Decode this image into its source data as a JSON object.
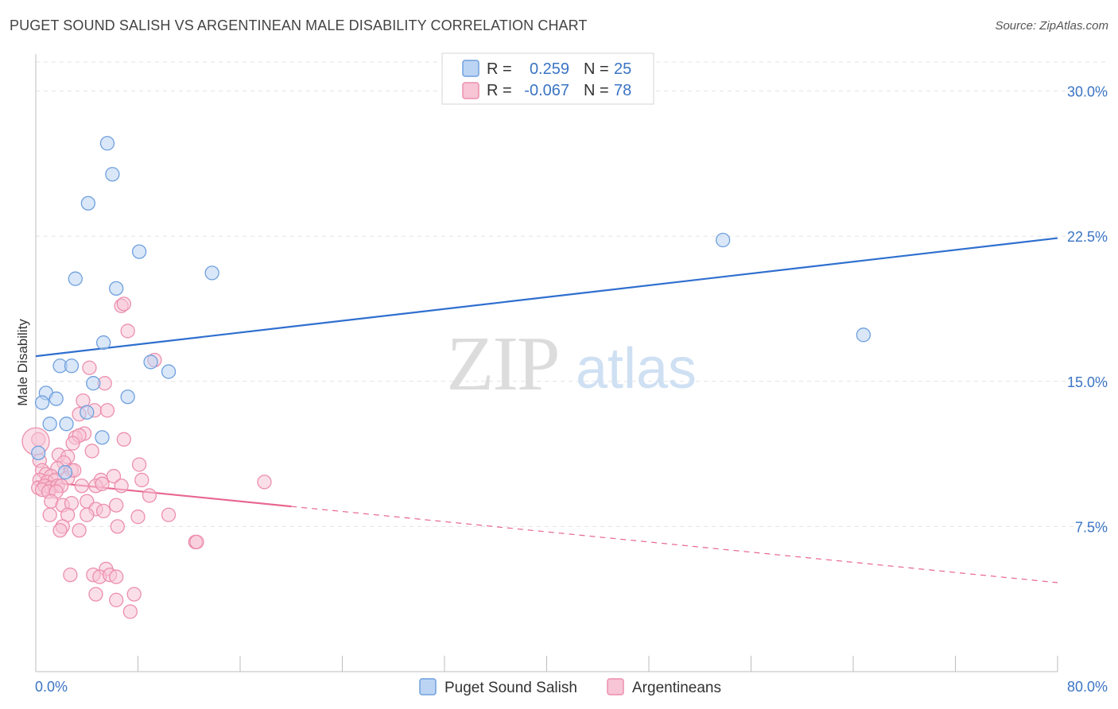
{
  "title": "PUGET SOUND SALISH VS ARGENTINEAN MALE DISABILITY CORRELATION CHART",
  "source": "Source: ZipAtlas.com",
  "watermark": {
    "zip": "ZIP",
    "atlas": "atlas"
  },
  "chart_data": {
    "type": "scatter",
    "title": "PUGET SOUND SALISH VS ARGENTINEAN MALE DISABILITY CORRELATION CHART",
    "xlabel": "",
    "ylabel": "Male Disability",
    "xlim": [
      0,
      80
    ],
    "ylim": [
      0,
      31.5
    ],
    "x_tick_labels": [
      {
        "value": 0,
        "label": "0.0%"
      },
      {
        "value": 80,
        "label": "80.0%"
      }
    ],
    "y_tick_labels": [
      {
        "value": 7.5,
        "label": "7.5%"
      },
      {
        "value": 15.0,
        "label": "15.0%"
      },
      {
        "value": 22.5,
        "label": "22.5%"
      },
      {
        "value": 30.0,
        "label": "30.0%"
      }
    ],
    "grid": true,
    "legend": {
      "placement": "top-center",
      "rows": [
        {
          "r_label": "R =",
          "r_value": "0.259",
          "n_label": "N =",
          "n_value": "25"
        },
        {
          "r_label": "R =",
          "r_value": "-0.067",
          "n_label": "N =",
          "n_value": "78"
        }
      ]
    },
    "series": [
      {
        "name": "Puget Sound Salish",
        "color": "#6fa0de",
        "fill": "#bcd4f3",
        "trend": {
          "x0": 0,
          "y0": 16.3,
          "x1": 80,
          "y1": 22.4,
          "solid_until": 80,
          "color": "#2f6fcf"
        },
        "points": [
          [
            5.6,
            27.3
          ],
          [
            6.0,
            25.7
          ],
          [
            4.1,
            24.2
          ],
          [
            8.1,
            21.7
          ],
          [
            3.1,
            20.3
          ],
          [
            13.8,
            20.6
          ],
          [
            6.3,
            19.8
          ],
          [
            53.8,
            22.3
          ],
          [
            64.8,
            17.4
          ],
          [
            5.3,
            17.0
          ],
          [
            1.9,
            15.8
          ],
          [
            2.8,
            15.8
          ],
          [
            9.0,
            16.0
          ],
          [
            10.4,
            15.5
          ],
          [
            4.5,
            14.9
          ],
          [
            0.8,
            14.4
          ],
          [
            1.6,
            14.1
          ],
          [
            7.2,
            14.2
          ],
          [
            0.5,
            13.9
          ],
          [
            4.0,
            13.4
          ],
          [
            1.1,
            12.8
          ],
          [
            2.4,
            12.8
          ],
          [
            5.2,
            12.1
          ],
          [
            0.2,
            11.3
          ],
          [
            2.3,
            10.3
          ]
        ]
      },
      {
        "name": "Argentineans",
        "color": "#ec8fad",
        "fill": "#f7c5d5",
        "trend": {
          "x0": 0,
          "y0": 9.85,
          "x1": 80,
          "y1": 4.6,
          "solid_until": 20,
          "color": "#e8668f"
        },
        "points": [
          [
            6.7,
            18.9
          ],
          [
            6.9,
            19.0
          ],
          [
            7.2,
            17.6
          ],
          [
            9.3,
            16.1
          ],
          [
            4.2,
            15.7
          ],
          [
            5.4,
            14.9
          ],
          [
            3.7,
            14.0
          ],
          [
            3.4,
            13.3
          ],
          [
            4.6,
            13.5
          ],
          [
            5.6,
            13.5
          ],
          [
            3.8,
            12.3
          ],
          [
            3.1,
            12.1
          ],
          [
            3.4,
            12.2
          ],
          [
            2.9,
            11.8
          ],
          [
            6.9,
            12.0
          ],
          [
            4.4,
            11.4
          ],
          [
            0.2,
            12.0
          ],
          [
            1.8,
            11.2
          ],
          [
            2.5,
            11.1
          ],
          [
            0.3,
            10.9
          ],
          [
            2.2,
            10.8
          ],
          [
            8.1,
            10.7
          ],
          [
            0.5,
            10.4
          ],
          [
            1.7,
            10.5
          ],
          [
            2.8,
            10.4
          ],
          [
            0.8,
            10.2
          ],
          [
            1.2,
            10.1
          ],
          [
            2.5,
            10.0
          ],
          [
            3.0,
            10.4
          ],
          [
            6.1,
            10.1
          ],
          [
            0.3,
            9.9
          ],
          [
            0.9,
            9.8
          ],
          [
            1.5,
            9.9
          ],
          [
            5.1,
            9.9
          ],
          [
            8.3,
            9.9
          ],
          [
            17.9,
            9.8
          ],
          [
            0.2,
            9.5
          ],
          [
            0.7,
            9.6
          ],
          [
            1.2,
            9.5
          ],
          [
            1.7,
            9.6
          ],
          [
            2.0,
            9.6
          ],
          [
            3.6,
            9.6
          ],
          [
            4.7,
            9.6
          ],
          [
            5.2,
            9.7
          ],
          [
            6.7,
            9.6
          ],
          [
            0.5,
            9.4
          ],
          [
            1.0,
            9.3
          ],
          [
            1.6,
            9.3
          ],
          [
            8.9,
            9.1
          ],
          [
            1.2,
            8.8
          ],
          [
            2.1,
            8.6
          ],
          [
            2.8,
            8.7
          ],
          [
            4.0,
            8.8
          ],
          [
            6.3,
            8.6
          ],
          [
            4.7,
            8.4
          ],
          [
            1.1,
            8.1
          ],
          [
            2.5,
            8.1
          ],
          [
            4.0,
            8.1
          ],
          [
            5.3,
            8.3
          ],
          [
            8.0,
            8.0
          ],
          [
            10.4,
            8.1
          ],
          [
            2.1,
            7.5
          ],
          [
            1.9,
            7.3
          ],
          [
            3.4,
            7.3
          ],
          [
            6.4,
            7.5
          ],
          [
            12.5,
            6.7
          ],
          [
            12.6,
            6.7
          ],
          [
            5.5,
            5.3
          ],
          [
            2.7,
            5.0
          ],
          [
            4.5,
            5.0
          ],
          [
            5.0,
            4.9
          ],
          [
            5.8,
            5.0
          ],
          [
            6.3,
            4.9
          ],
          [
            4.7,
            4.0
          ],
          [
            6.3,
            3.7
          ],
          [
            7.7,
            4.0
          ],
          [
            7.4,
            3.1
          ],
          [
            0.0,
            11.9
          ]
        ]
      }
    ]
  }
}
